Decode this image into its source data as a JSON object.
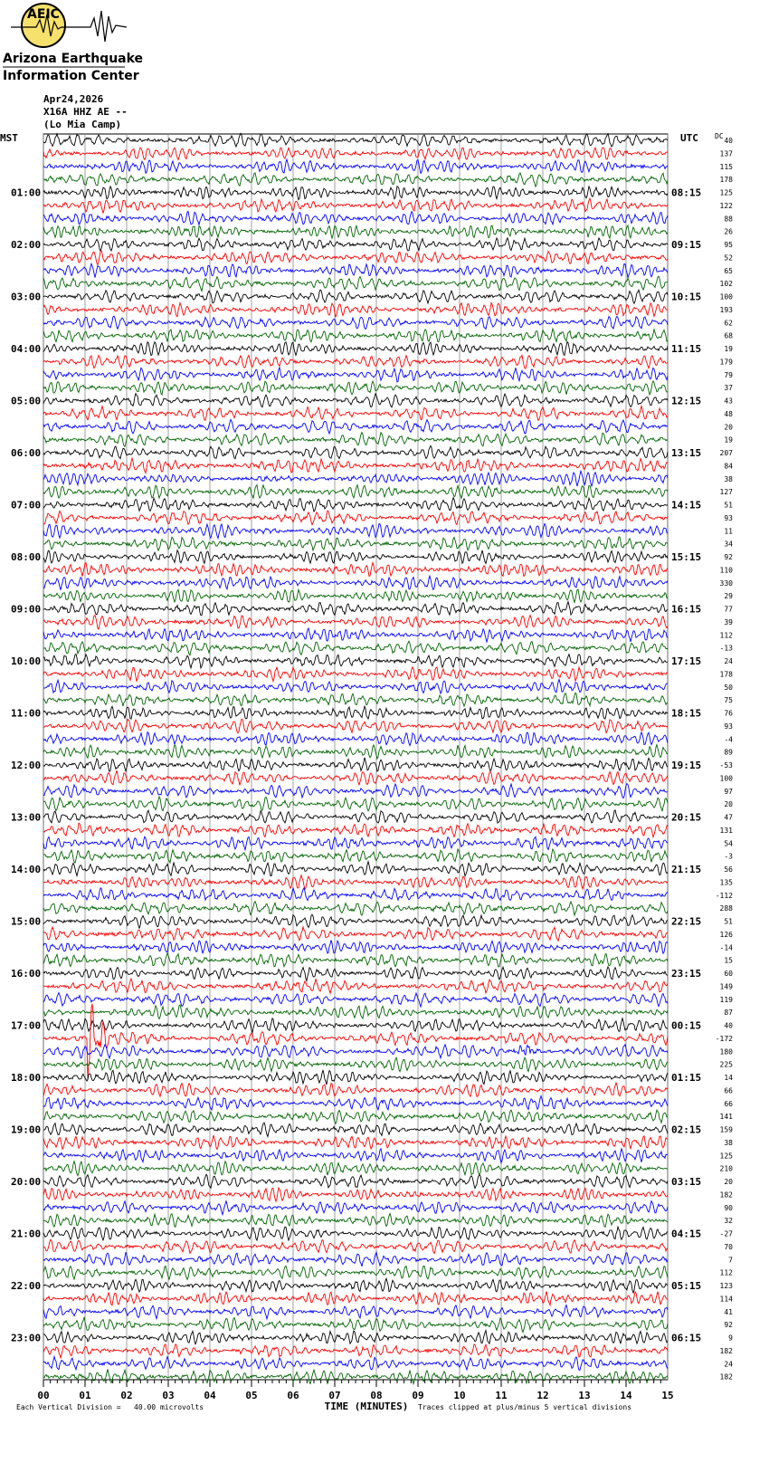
{
  "header": {
    "logo_abbr": "AEIC",
    "logo_line1": "Arizona Earthquake",
    "logo_line2": "Information Center",
    "date": "Apr24,2026",
    "station": "X16A HHZ AE --",
    "site": "(Lo Mia Camp)"
  },
  "left_header": "MST",
  "right_header": "UTC",
  "dc_header": "DC",
  "left_labels": [
    "01:00",
    "02:00",
    "03:00",
    "04:00",
    "05:00",
    "06:00",
    "07:00",
    "08:00",
    "09:00",
    "10:00",
    "11:00",
    "12:00",
    "13:00",
    "14:00",
    "15:00",
    "16:00",
    "17:00",
    "18:00",
    "19:00",
    "20:00",
    "21:00",
    "22:00",
    "23:00"
  ],
  "right_labels": [
    "08:15",
    "09:15",
    "10:15",
    "11:15",
    "12:15",
    "13:15",
    "14:15",
    "15:15",
    "16:15",
    "17:15",
    "18:15",
    "19:15",
    "20:15",
    "21:15",
    "22:15",
    "23:15",
    "00:15",
    "01:15",
    "02:15",
    "03:15",
    "04:15",
    "05:15",
    "06:15"
  ],
  "dc_values": [
    40,
    137,
    115,
    178,
    125,
    122,
    88,
    26,
    95,
    52,
    65,
    102,
    100,
    193,
    62,
    68,
    19,
    179,
    79,
    37,
    43,
    48,
    20,
    19,
    207,
    84,
    38,
    127,
    51,
    93,
    11,
    34,
    92,
    110,
    330,
    29,
    77,
    39,
    112,
    -13,
    24,
    178,
    50,
    75,
    76,
    93,
    -4,
    89,
    -53,
    100,
    97,
    20,
    47,
    131,
    54,
    -3,
    56,
    135,
    -112,
    288,
    51,
    126,
    -14,
    15,
    60,
    149,
    119,
    87,
    40,
    -172,
    180,
    225,
    14,
    66,
    66,
    141,
    159,
    38,
    125,
    210,
    20,
    182,
    90,
    32,
    -27,
    70,
    7,
    112,
    123,
    114,
    41,
    92,
    9,
    182,
    24,
    182
  ],
  "x_tick_labels": [
    "00",
    "01",
    "02",
    "03",
    "04",
    "05",
    "06",
    "07",
    "08",
    "09",
    "10",
    "11",
    "12",
    "13",
    "14",
    "15"
  ],
  "x_axis_title": "TIME (MINUTES)",
  "footer_left": "Each Vertical Division =   40.00 microvolts",
  "footer_right": "Traces clipped at plus/minus 5 vertical divisions",
  "trace_colors": [
    "#000000",
    "#ff0000",
    "#0000ff",
    "#006400"
  ]
}
